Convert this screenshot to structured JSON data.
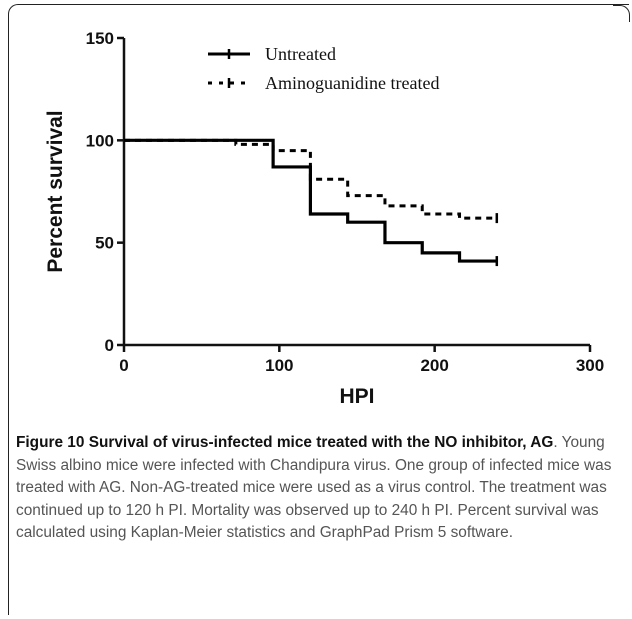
{
  "chart_data": {
    "type": "line",
    "xlabel": "HPI",
    "ylabel": "Percent survival",
    "xlim": [
      0,
      300
    ],
    "ylim": [
      0,
      150
    ],
    "x_ticks": [
      0,
      100,
      200,
      300
    ],
    "y_ticks": [
      0,
      50,
      100,
      150
    ],
    "grid": false,
    "legend_position": "top",
    "step": true,
    "series": [
      {
        "name": "Untreated",
        "style": "solid",
        "color": "#000000",
        "x": [
          0,
          96,
          120,
          144,
          168,
          192,
          216,
          240
        ],
        "y": [
          100,
          87,
          64,
          60,
          50,
          45,
          41,
          41
        ]
      },
      {
        "name": "Aminoguanidine treated",
        "style": "dashed",
        "color": "#000000",
        "x": [
          0,
          72,
          96,
          120,
          144,
          168,
          192,
          216,
          240
        ],
        "y": [
          100,
          98,
          95,
          81,
          73,
          68,
          64,
          62,
          62
        ]
      }
    ]
  },
  "caption": {
    "title": "Figure 10 Survival of virus-infected mice treated with the NO inhibitor, AG",
    "body": ". Young Swiss albino mice were infected with Chandipura virus. One group of infected mice was treated with AG. Non-AG-treated mice were used as a virus control. The treatment was continued up to 120 h PI. Mortality was observed up to 240 h PI. Percent survival was calculated using Kaplan-Meier statistics and GraphPad Prism 5 software."
  }
}
